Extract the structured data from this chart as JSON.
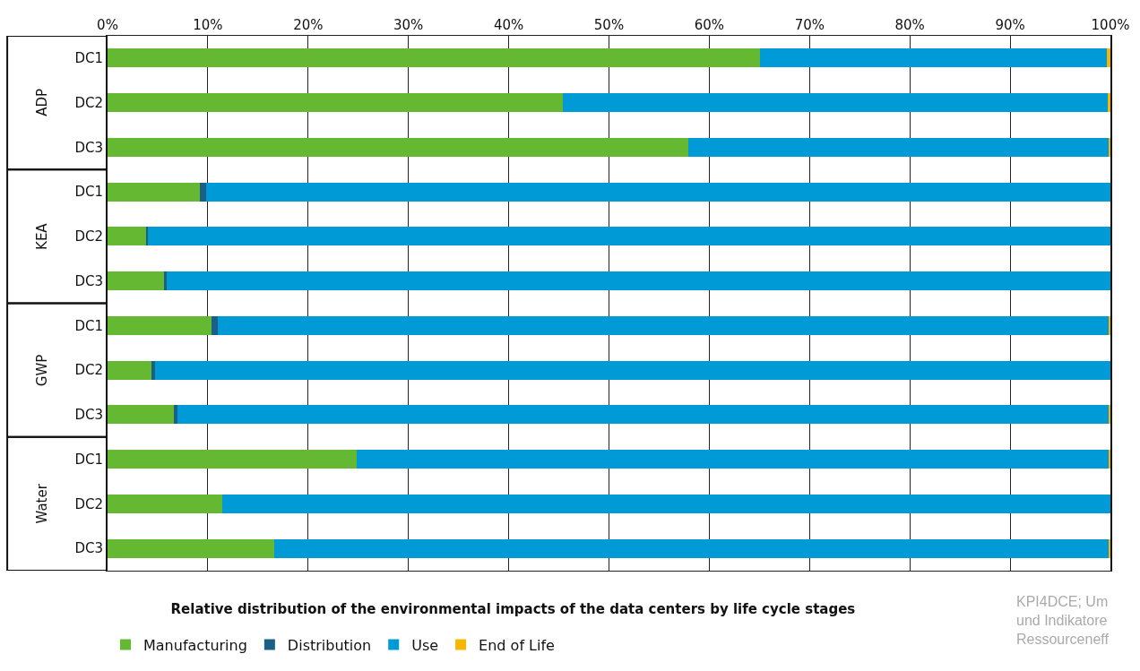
{
  "chart_data": {
    "type": "bar",
    "orientation": "horizontal",
    "stacked": true,
    "title": "Relative distribution of the environmental impacts of the data centers by life cycle stages",
    "categories": [
      "DC1",
      "DC2",
      "DC3",
      "DC1",
      "DC2",
      "DC3",
      "DC1",
      "DC2",
      "DC3",
      "DC1",
      "DC2",
      "DC3"
    ],
    "series": [
      {
        "name": "Manufacturing",
        "color": "#65b832",
        "values": [
          65.1,
          45.4,
          57.9,
          9.2,
          3.8,
          5.6,
          10.4,
          4.4,
          6.6,
          24.8,
          11.4,
          16.6
        ]
      },
      {
        "name": "Distribution",
        "color": "#1b5e86",
        "values": [
          0,
          0,
          0,
          0.6,
          0.2,
          0.3,
          0.6,
          0.3,
          0.4,
          0,
          0,
          0
        ]
      },
      {
        "name": "Use",
        "color": "#009bd6",
        "values": [
          34.5,
          54.3,
          42.0,
          90.2,
          96.0,
          94.1,
          88.9,
          95.3,
          92.9,
          75.1,
          88.6,
          83.3
        ]
      },
      {
        "name": "End of Life",
        "color": "#f5b800",
        "values": [
          0.4,
          0.3,
          0.1,
          0,
          0,
          0,
          0.1,
          0,
          0.1,
          0.1,
          0,
          0.1
        ]
      }
    ],
    "xlim": [
      0,
      100
    ],
    "xticks": [
      {
        "value": 0,
        "label": "0%"
      },
      {
        "value": 10,
        "label": "10%"
      },
      {
        "value": 20,
        "label": "20%"
      },
      {
        "value": 30,
        "label": "30%"
      },
      {
        "value": 40,
        "label": "40%"
      },
      {
        "value": 50,
        "label": "50%"
      },
      {
        "value": 60,
        "label": "60%"
      },
      {
        "value": 70,
        "label": "70%"
      },
      {
        "value": 80,
        "label": "80%"
      },
      {
        "value": 90,
        "label": "90%"
      },
      {
        "value": 100,
        "label": "100%"
      }
    ],
    "grid": "x",
    "legend": "bottom",
    "annotations": [
      "ADP",
      "KEA",
      "GWP",
      "Water",
      "KPI4DCE; Um\nund Indikatore\nRessourceneff"
    ]
  }
}
